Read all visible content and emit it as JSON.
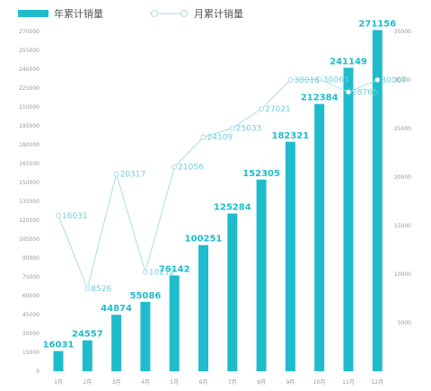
{
  "legend": {
    "bar_series": "年累计销量",
    "line_series": "月累计销量"
  },
  "colors": {
    "bar": "#1fbccc",
    "line": "#a6dfe6",
    "line_label": "#6fcfd9",
    "tick": "#999999"
  },
  "chart_data": {
    "type": "bar",
    "categories": [
      "1月",
      "2月",
      "3月",
      "4月",
      "5月",
      "6月",
      "7月",
      "8月",
      "9月",
      "10月",
      "11月",
      "12月"
    ],
    "series": [
      {
        "name": "年累计销量",
        "type": "bar",
        "axis": "left",
        "values": [
          16031,
          24557,
          44874,
          55086,
          76142,
          100251,
          125284,
          152305,
          182321,
          212384,
          241149,
          271156
        ]
      },
      {
        "name": "月累计销量",
        "type": "line",
        "axis": "right",
        "values": [
          16031,
          8526,
          20317,
          10212,
          21056,
          24109,
          25033,
          27021,
          30016,
          30063,
          28765,
          30007
        ]
      }
    ],
    "left_axis": {
      "min": 0,
      "max": 270000,
      "step": 15000
    },
    "right_axis": {
      "min": 0,
      "max": 35000,
      "step": 5000
    },
    "grid": false,
    "legend_position": "top-left",
    "bar_value_labels": [
      "16031",
      "24557",
      "44874",
      "55086",
      "76142",
      "100251",
      "125284",
      "152305",
      "182321",
      "212384",
      "241149",
      "271156"
    ],
    "line_value_labels": [
      "16031",
      "8526",
      "20317",
      "10212",
      "21056",
      "24109",
      "25033",
      "27021",
      "30016",
      "30063",
      "28765",
      "30007"
    ]
  }
}
